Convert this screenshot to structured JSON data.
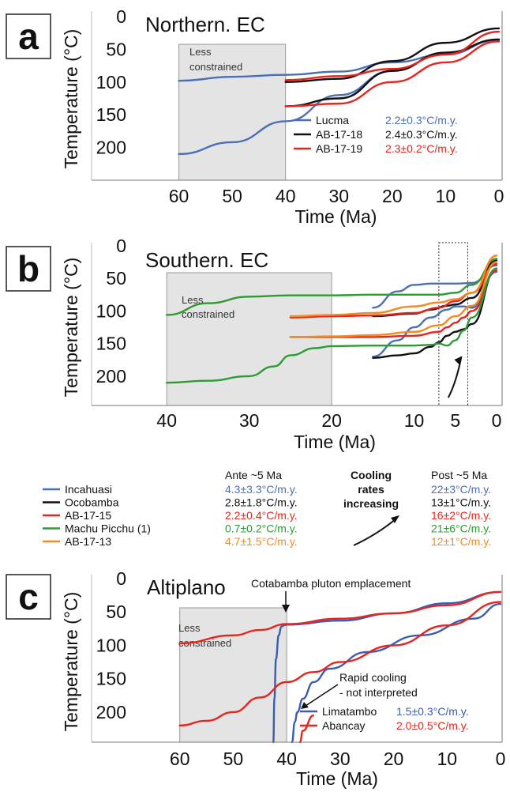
{
  "chart_data": [
    {
      "panel_label": "a",
      "type": "line",
      "title": "Northern. EC",
      "xlabel": "Time (Ma)",
      "ylabel": "Temperature (°C)",
      "xlim": [
        70,
        0
      ],
      "ylim": [
        0,
        250
      ],
      "xticks": [
        60,
        50,
        40,
        30,
        20,
        10,
        0
      ],
      "yticks": [
        0,
        50,
        100,
        150,
        200
      ],
      "grid": false,
      "shaded_region": {
        "x": [
          60,
          40
        ],
        "label": "Less constrained"
      },
      "series": [
        {
          "name": "Lucma",
          "color": "#4a6fb5",
          "rate": "2.2±0.3°C/m.y.",
          "paths": [
            {
              "x": [
                60,
                50,
                40,
                30,
                20,
                10,
                0
              ],
              "y": [
                98,
                92,
                89,
                84,
                70,
                58,
                35
              ]
            },
            {
              "x": [
                60,
                50,
                40,
                30,
                20,
                10,
                0
              ],
              "y": [
                210,
                192,
                160,
                120,
                83,
                55,
                36
              ]
            }
          ]
        },
        {
          "name": "AB-17-18",
          "color": "#111111",
          "rate": "2.4±0.3°C/m.y.",
          "paths": [
            {
              "x": [
                40,
                30,
                20,
                10,
                0
              ],
              "y": [
                100,
                95,
                68,
                40,
                18
              ]
            },
            {
              "x": [
                40,
                30,
                20,
                10,
                0
              ],
              "y": [
                137,
                125,
                83,
                55,
                35
              ]
            }
          ]
        },
        {
          "name": "AB-17-19",
          "color": "#e8241c",
          "rate": "2.3±0.2°C/m.y.",
          "paths": [
            {
              "x": [
                40,
                30,
                20,
                10,
                0
              ],
              "y": [
                97,
                91,
                80,
                58,
                23
              ]
            },
            {
              "x": [
                40,
                30,
                20,
                10,
                0
              ],
              "y": [
                137,
                133,
                100,
                70,
                38
              ]
            }
          ]
        }
      ]
    },
    {
      "panel_label": "b",
      "type": "line",
      "title": "Southern. EC",
      "xlabel": "Time (Ma)",
      "ylabel": "Temperature (°C)",
      "xlim": [
        45,
        0
      ],
      "ylim": [
        0,
        245
      ],
      "xticks": [
        40,
        30,
        20,
        10,
        5,
        0
      ],
      "yticks": [
        0,
        50,
        100,
        150,
        200
      ],
      "grid": false,
      "shaded_region": {
        "x": [
          40,
          20
        ],
        "label": "Less constrained"
      },
      "dotted_box": {
        "x": [
          7,
          3.5
        ]
      },
      "series": [
        {
          "name": "Incahuasi",
          "color": "#4a6fb5",
          "paths": [
            {
              "x": [
                15,
                12,
                10,
                8,
                5,
                3,
                0
              ],
              "y": [
                95,
                70,
                60,
                58,
                58,
                57,
                30
              ]
            },
            {
              "x": [
                15,
                12,
                10,
                8,
                6,
                5,
                4,
                3,
                0
              ],
              "y": [
                170,
                145,
                125,
                110,
                98,
                93,
                93,
                95,
                40
              ]
            }
          ]
        },
        {
          "name": "Ocobamba",
          "color": "#111111",
          "paths": [
            {
              "x": [
                15,
                10,
                8,
                6,
                5,
                3,
                0
              ],
              "y": [
                108,
                104,
                98,
                92,
                90,
                80,
                22
              ]
            },
            {
              "x": [
                15,
                12,
                10,
                8,
                7,
                6,
                5,
                4,
                3,
                0
              ],
              "y": [
                172,
                168,
                165,
                155,
                148,
                138,
                132,
                128,
                120,
                35
              ]
            }
          ]
        },
        {
          "name": "AB-17-15",
          "color": "#e8241c",
          "paths": [
            {
              "x": [
                25,
                20,
                15,
                10,
                7,
                5,
                3,
                0
              ],
              "y": [
                110,
                108,
                107,
                103,
                95,
                85,
                72,
                28
              ]
            },
            {
              "x": [
                25,
                20,
                15,
                10,
                7,
                6,
                5,
                4,
                3,
                0
              ],
              "y": [
                140,
                140,
                140,
                138,
                132,
                125,
                118,
                110,
                100,
                38
              ]
            }
          ]
        },
        {
          "name": "Machu Picchu (1)",
          "color": "#2f9a34",
          "paths": [
            {
              "x": [
                40,
                35,
                30,
                25,
                20,
                15,
                10,
                7,
                5,
                3,
                0
              ],
              "y": [
                106,
                88,
                78,
                76,
                76,
                75,
                75,
                75,
                72,
                60,
                20
              ]
            },
            {
              "x": [
                40,
                35,
                30,
                27,
                25,
                22,
                20,
                15,
                10,
                8,
                7,
                6,
                5,
                4,
                3,
                0
              ],
              "y": [
                210,
                207,
                200,
                185,
                168,
                157,
                154,
                153,
                153,
                152,
                150,
                153,
                145,
                130,
                110,
                35
              ]
            }
          ]
        },
        {
          "name": "AB-17-13",
          "color": "#f38a1f",
          "paths": [
            {
              "x": [
                25,
                20,
                15,
                10,
                7,
                5,
                3,
                0
              ],
              "y": [
                108,
                106,
                103,
                93,
                87,
                82,
                72,
                15
              ]
            },
            {
              "x": [
                25,
                20,
                15,
                10,
                7,
                5,
                3,
                0
              ],
              "y": [
                140,
                139,
                137,
                132,
                122,
                108,
                92,
                25
              ]
            }
          ]
        }
      ]
    },
    {
      "panel_label": "c",
      "type": "line",
      "title": "Altiplano",
      "xlabel": "Time (Ma)",
      "ylabel": "Temperature (°C)",
      "xlim": [
        70,
        0
      ],
      "ylim": [
        0,
        245
      ],
      "xticks": [
        60,
        50,
        40,
        30,
        20,
        10,
        0
      ],
      "yticks": [
        0,
        50,
        100,
        150,
        200
      ],
      "grid": false,
      "shaded_region": {
        "x": [
          60,
          40
        ],
        "label": "Less constrained"
      },
      "annotations": [
        {
          "text": "Cotabamba pluton emplacement",
          "at": [
            40.5,
            68
          ]
        },
        {
          "text": "Rapid cooling\n- not interpreted",
          "at": [
            39,
            225
          ]
        }
      ],
      "series": [
        {
          "name": "Limatambo",
          "color": "#3b5bb5",
          "rate": "1.5±0.3°C/m.y.",
          "paths": [
            {
              "x": [
                42.5,
                42.3,
                42,
                41.5,
                41,
                40.5,
                40,
                30,
                20,
                10,
                0
              ],
              "y": [
                245,
                180,
                120,
                85,
                72,
                70,
                69,
                63,
                52,
                37,
                20
              ]
            },
            {
              "x": [
                39,
                38.5,
                38,
                37,
                35,
                32,
                25,
                15,
                5,
                0
              ],
              "y": [
                245,
                215,
                200,
                180,
                155,
                135,
                110,
                85,
                60,
                38
              ]
            }
          ]
        },
        {
          "name": "Abancay",
          "color": "#e8241c",
          "rate": "2.0±0.5°C/m.y.",
          "paths": [
            {
              "x": [
                60,
                50,
                45,
                40,
                30,
                20,
                10,
                0
              ],
              "y": [
                97,
                85,
                77,
                68,
                60,
                52,
                40,
                20
              ]
            },
            {
              "x": [
                60,
                55,
                50,
                45,
                40,
                35,
                30,
                20,
                10,
                0
              ],
              "y": [
                220,
                213,
                200,
                178,
                155,
                140,
                125,
                100,
                70,
                35
              ]
            },
            {
              "x": [
                37.5,
                37,
                35
              ],
              "y": [
                245,
                228,
                205
              ]
            }
          ]
        }
      ]
    }
  ],
  "legend_b": {
    "header_ante": "Ante ~5 Ma",
    "header_post": "Post ~5 Ma",
    "cooling_note": "Cooling rates increasing",
    "rows": [
      {
        "name": "Incahuasi",
        "color": "#4a6fb5",
        "ante": "4.3±3.3°C/m.y.",
        "post": "22±3°C/m.y.",
        "ante_color": "#4a6fb5",
        "post_color": "#4a6fb5"
      },
      {
        "name": "Ocobamba",
        "color": "#111111",
        "ante": "2.8±1.8°C/m.y.",
        "post": "13±1°C/m.y.",
        "ante_color": "#111111",
        "post_color": "#111111"
      },
      {
        "name": "AB-17-15",
        "color": "#e8241c",
        "ante": "2.2±0.4°C/m.y.",
        "post": "16±2°C/m.y.",
        "ante_color": "#e8241c",
        "post_color": "#e8241c"
      },
      {
        "name": "Machu Picchu (1)",
        "color": "#2f9a34",
        "ante": "0.7±0.2°C/m.y.",
        "post": "21±6°C/m.y.",
        "ante_color": "#2f9a34",
        "post_color": "#2f9a34"
      },
      {
        "name": "AB-17-13",
        "color": "#f38a1f",
        "ante": "4.7±1.5°C/m.y.",
        "post": "12±1°C/m.y.",
        "ante_color": "#f38a1f",
        "post_color": "#f38a1f"
      }
    ]
  }
}
